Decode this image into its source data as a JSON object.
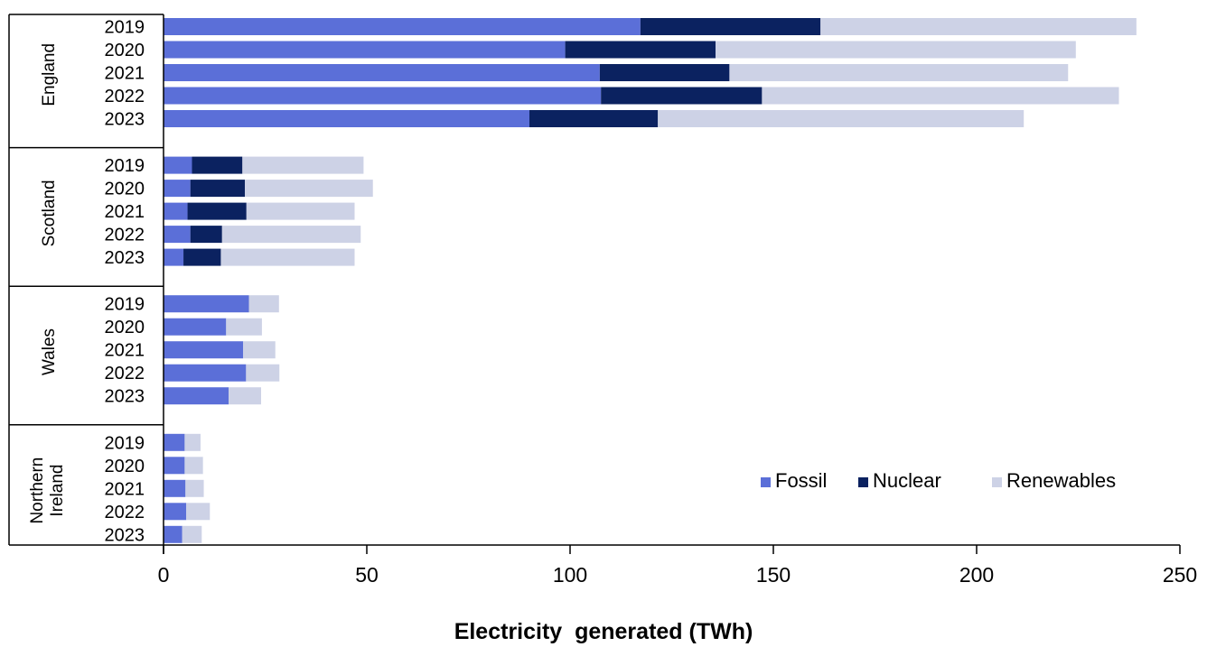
{
  "chart_data": {
    "type": "bar",
    "orientation": "horizontal",
    "stacked": true,
    "xlabel": "Electricity  generated (TWh)",
    "xlim": [
      0,
      250
    ],
    "xticks": [
      0,
      50,
      100,
      150,
      200,
      250
    ],
    "legend_position": "bottom-right",
    "grid": false,
    "groups": [
      {
        "name": "England",
        "years": [
          "2019",
          "2020",
          "2021",
          "2022",
          "2023"
        ]
      },
      {
        "name": "Scotland",
        "years": [
          "2019",
          "2020",
          "2021",
          "2022",
          "2023"
        ]
      },
      {
        "name": "Wales",
        "years": [
          "2019",
          "2020",
          "2021",
          "2022",
          "2023"
        ]
      },
      {
        "name": "Northern Ireland",
        "label_lines": [
          "Northern",
          "Ireland"
        ],
        "years": [
          "2019",
          "2020",
          "2021",
          "2022",
          "2023"
        ]
      }
    ],
    "series": [
      {
        "name": "Fossil",
        "color": "#5b6fd8",
        "values": [
          [
            117.3,
            98.8,
            107.3,
            107.6,
            90.0
          ],
          [
            7.0,
            6.6,
            5.9,
            6.6,
            4.9
          ],
          [
            21.0,
            15.4,
            19.6,
            20.3,
            16.0
          ],
          [
            5.2,
            5.2,
            5.4,
            5.6,
            4.6
          ]
        ]
      },
      {
        "name": "Nuclear",
        "color": "#0b2260",
        "values": [
          [
            44.3,
            37.0,
            31.9,
            39.6,
            31.6
          ],
          [
            12.4,
            13.4,
            14.5,
            7.8,
            9.2
          ],
          [
            0,
            0,
            0,
            0,
            0
          ],
          [
            0,
            0,
            0,
            0,
            0
          ]
        ]
      },
      {
        "name": "Renewables",
        "color": "#cdd2e6",
        "values": [
          [
            77.7,
            88.6,
            83.3,
            87.8,
            90.0
          ],
          [
            29.8,
            31.5,
            26.6,
            34.1,
            32.9
          ],
          [
            7.4,
            8.8,
            7.9,
            8.2,
            8.0
          ],
          [
            3.9,
            4.5,
            4.5,
            5.8,
            4.8
          ]
        ]
      }
    ]
  }
}
